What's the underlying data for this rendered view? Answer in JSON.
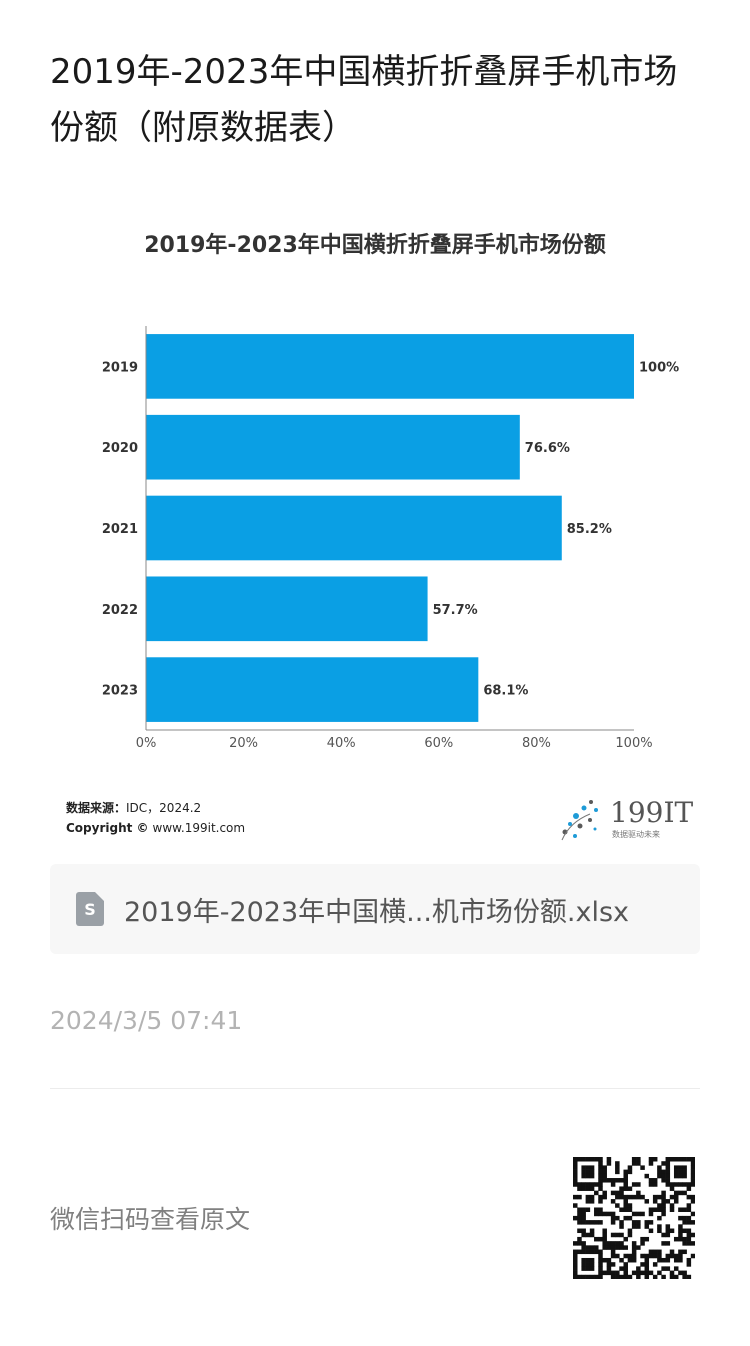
{
  "page": {
    "title": "2019年-2023年中国横折折叠屏手机市场份额（附原数据表）",
    "file_name": "2019年-2023年中国横...机市场份额.xlsx",
    "file_icon_letter": "S",
    "timestamp": "2024/3/5 07:41",
    "qr_caption": "微信扫码查看原文"
  },
  "chart_data": {
    "type": "bar",
    "orientation": "horizontal",
    "title": "2019年-2023年中国横折折叠屏手机市场份额",
    "categories": [
      "2019",
      "2020",
      "2021",
      "2022",
      "2023"
    ],
    "values": [
      100,
      76.6,
      85.2,
      57.7,
      68.1
    ],
    "value_labels": [
      "100%",
      "76.6%",
      "85.2%",
      "57.7%",
      "68.1%"
    ],
    "xlim": [
      0,
      100
    ],
    "xticks": [
      "0%",
      "20%",
      "40%",
      "60%",
      "80%",
      "100%"
    ],
    "bar_color": "#0a9fe4",
    "grid": false,
    "legend": "none",
    "source_label": "数据来源：",
    "source_value": "IDC，2024.2",
    "copyright_label": "Copyright ©",
    "copyright_value": "www.199it.com",
    "logo_text": "199IT",
    "logo_subtext": "数据驱动未来"
  }
}
